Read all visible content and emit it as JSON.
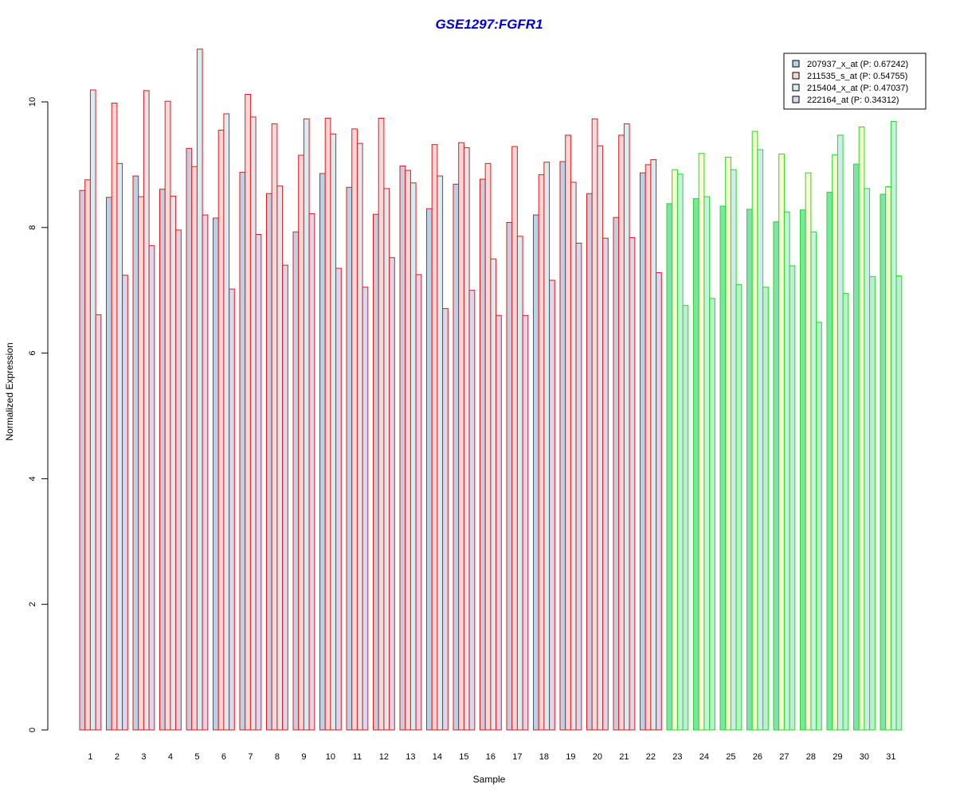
{
  "chart_data": {
    "type": "bar",
    "title": "GSE1297:FGFR1",
    "xlabel": "Sample",
    "ylabel": "Normalized Expression",
    "ylim": [
      0,
      11
    ],
    "yticks": [
      "0",
      "2",
      "4",
      "6",
      "8",
      "10"
    ],
    "categories": [
      "1",
      "2",
      "3",
      "4",
      "5",
      "6",
      "7",
      "8",
      "9",
      "10",
      "11",
      "12",
      "13",
      "14",
      "15",
      "16",
      "17",
      "18",
      "19",
      "20",
      "21",
      "22",
      "23",
      "24",
      "25",
      "26",
      "27",
      "28",
      "29",
      "30",
      "31"
    ],
    "group_colors": {
      "red_group_samples": "1-22",
      "green_group_samples": "23-31",
      "red_border": "#e31a1c",
      "green_border": "#22dd22"
    },
    "series": [
      {
        "name": "207937_x_at (P: 0.67242)",
        "fill": "#bcd1e3",
        "values": [
          8.59,
          8.48,
          8.82,
          8.61,
          9.26,
          8.15,
          8.88,
          8.54,
          7.93,
          8.86,
          8.64,
          8.21,
          8.98,
          8.3,
          8.69,
          8.77,
          8.08,
          8.2,
          9.05,
          8.54,
          8.16,
          8.87,
          8.38,
          8.46,
          8.34,
          8.29,
          8.09,
          8.28,
          8.56,
          9.01,
          8.53
        ]
      },
      {
        "name": "211535_s_at (P: 0.54755)",
        "fill": "#fad6d6",
        "values": [
          8.76,
          9.98,
          8.49,
          10.01,
          8.97,
          9.55,
          10.12,
          9.65,
          9.15,
          9.74,
          9.57,
          9.74,
          8.91,
          9.32,
          9.35,
          9.02,
          9.29,
          8.84,
          9.47,
          9.73,
          9.47,
          9.0,
          8.92,
          9.18,
          9.12,
          9.53,
          9.17,
          8.87,
          9.16,
          9.6,
          8.65
        ]
      },
      {
        "name": "215404_x_at (P: 0.47037)",
        "fill": "#d9ecf2",
        "values": [
          10.19,
          9.02,
          10.18,
          8.5,
          10.84,
          9.81,
          9.76,
          8.66,
          9.73,
          9.49,
          9.34,
          8.62,
          8.71,
          8.82,
          9.27,
          7.5,
          7.86,
          9.04,
          8.72,
          9.3,
          9.65,
          9.08,
          8.85,
          8.49,
          8.92,
          9.24,
          8.25,
          7.93,
          9.47,
          8.62,
          9.69
        ]
      },
      {
        "name": "222164_at (P: 0.34312)",
        "fill": "#ddd6ec",
        "values": [
          6.61,
          7.24,
          7.71,
          7.96,
          8.2,
          7.02,
          7.89,
          7.4,
          8.22,
          7.35,
          7.05,
          7.52,
          7.25,
          6.71,
          7.0,
          6.6,
          6.6,
          7.16,
          7.75,
          7.83,
          7.84,
          7.28,
          6.76,
          6.87,
          7.09,
          7.05,
          7.39,
          6.49,
          6.95,
          7.22,
          7.23
        ]
      }
    ],
    "legend_position": "top-right",
    "grid": false
  }
}
